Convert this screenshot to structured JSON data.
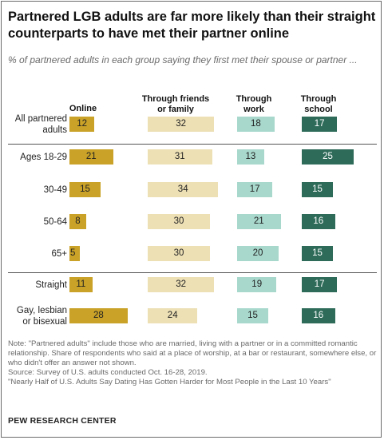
{
  "title": "Partnered LGB adults are far more likely than their straight counterparts to have met their partner online",
  "subtitle": "% of partnered adults in each group saying they first met their spouse or partner ...",
  "chart_data": {
    "type": "bar",
    "columns": [
      {
        "label": "Online",
        "color": "#c9a227"
      },
      {
        "label": "Through friends or family",
        "color": "#ede0b5"
      },
      {
        "label": "Through work",
        "color": "#a8d8cc"
      },
      {
        "label": "Through school",
        "color": "#2e6b59"
      }
    ],
    "categories": [
      "All partnered adults",
      "Ages 18-29",
      "30-49",
      "50-64",
      "65+",
      "Straight",
      "Gay, lesbian or bisexual"
    ],
    "series": [
      {
        "name": "Online",
        "values": [
          12,
          21,
          15,
          8,
          5,
          11,
          28
        ]
      },
      {
        "name": "Through friends or family",
        "values": [
          32,
          31,
          34,
          30,
          30,
          32,
          24
        ]
      },
      {
        "name": "Through work",
        "values": [
          18,
          13,
          17,
          21,
          20,
          19,
          15
        ]
      },
      {
        "name": "Through school",
        "values": [
          17,
          25,
          15,
          16,
          15,
          17,
          16
        ]
      }
    ]
  },
  "notes": {
    "note": "Note: \"Partnered adults\" include those who are married, living with a partner or in a committed romantic relationship. Share of respondents who said at a place of worship, at a bar or restaurant, somewhere else, or who didn't offer an answer not shown.",
    "source": "Source: Survey of U.S. adults conducted Oct. 16-28, 2019.",
    "report": "\"Nearly Half of U.S. Adults Say Dating Has Gotten Harder for Most People in the Last 10 Years\""
  },
  "brand": "PEW RESEARCH CENTER"
}
